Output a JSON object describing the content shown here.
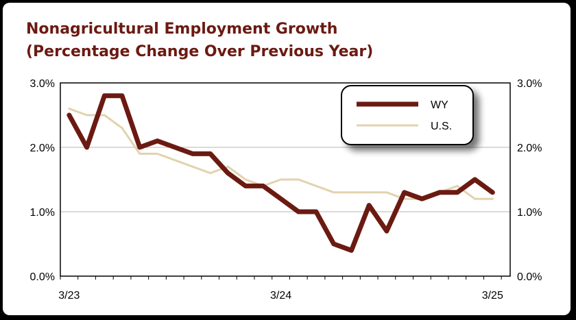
{
  "chart_data": {
    "type": "line",
    "title": "Nonagricultural Employment Growth",
    "subtitle": "(Percentage Change Over Previous Year)",
    "x_tick_labels": [
      "3/23",
      "3/24",
      "3/25"
    ],
    "y_tick_labels": [
      "0.0%",
      "1.0%",
      "2.0%",
      "3.0%"
    ],
    "y_ticks": [
      0,
      1,
      2,
      3
    ],
    "ylim": [
      0,
      3
    ],
    "y_unit": "%",
    "grid": "horizontal",
    "legend_position": "top-right",
    "secondary_y_axis": true,
    "x": [
      "3/23",
      "4/23",
      "5/23",
      "6/23",
      "7/23",
      "8/23",
      "9/23",
      "10/23",
      "11/23",
      "12/23",
      "1/24",
      "2/24",
      "3/24",
      "4/24",
      "5/24",
      "6/24",
      "7/24",
      "8/24",
      "9/24",
      "10/24",
      "11/24",
      "12/24",
      "1/25",
      "2/25",
      "3/25"
    ],
    "series": [
      {
        "name": "WY",
        "color": "#6b1a12",
        "values": [
          2.5,
          2.0,
          2.8,
          2.8,
          2.0,
          2.1,
          2.0,
          1.9,
          1.9,
          1.6,
          1.4,
          1.4,
          1.2,
          1.0,
          1.0,
          0.5,
          0.4,
          1.1,
          0.7,
          1.3,
          1.2,
          1.3,
          1.3,
          1.5,
          1.3
        ]
      },
      {
        "name": "U.S.",
        "color": "#e2d2ad",
        "values": [
          2.6,
          2.5,
          2.5,
          2.3,
          1.9,
          1.9,
          1.8,
          1.7,
          1.6,
          1.7,
          1.5,
          1.4,
          1.5,
          1.5,
          1.4,
          1.3,
          1.3,
          1.3,
          1.3,
          1.2,
          1.2,
          1.3,
          1.4,
          1.2,
          1.2
        ]
      }
    ]
  }
}
